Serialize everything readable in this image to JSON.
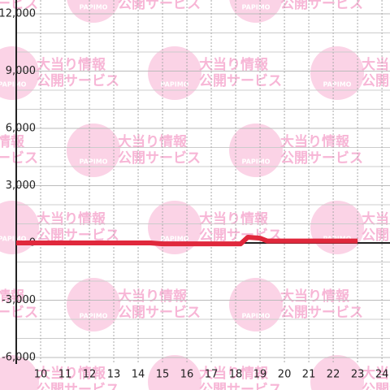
{
  "chart_data": {
    "type": "line",
    "x": [
      9,
      14.5,
      15,
      18.2,
      18.5,
      19,
      19.3,
      23
    ],
    "series": [
      {
        "color": "#e0283c",
        "values": [
          0,
          0,
          -50,
          -50,
          300,
          250,
          100,
          100
        ]
      }
    ],
    "xlim": [
      9,
      24.33
    ],
    "xticks": [
      10,
      11,
      12,
      13,
      14,
      15,
      16,
      17,
      18,
      19,
      20,
      21,
      22,
      23,
      24
    ],
    "ylim": [
      -6000,
      12000
    ],
    "yticks": [
      {
        "value": -6000,
        "label": "-6,000"
      },
      {
        "value": -3000,
        "label": "-3,000"
      },
      0,
      {
        "value": 3000,
        "label": "3,000"
      },
      {
        "value": 6000,
        "label": "6,000"
      },
      {
        "value": 9000,
        "label": "9,000"
      },
      {
        "value": 12000,
        "label": "12,000"
      }
    ],
    "minor_yticks": [
      -5000,
      -4000,
      -2000,
      -1000,
      1000,
      2000,
      4000,
      5000,
      7000,
      8000,
      10000,
      11000
    ],
    "grid": true
  },
  "watermark": {
    "brand": "PAPIMO",
    "line1": "大当り情報",
    "line2": "公開サービス"
  }
}
